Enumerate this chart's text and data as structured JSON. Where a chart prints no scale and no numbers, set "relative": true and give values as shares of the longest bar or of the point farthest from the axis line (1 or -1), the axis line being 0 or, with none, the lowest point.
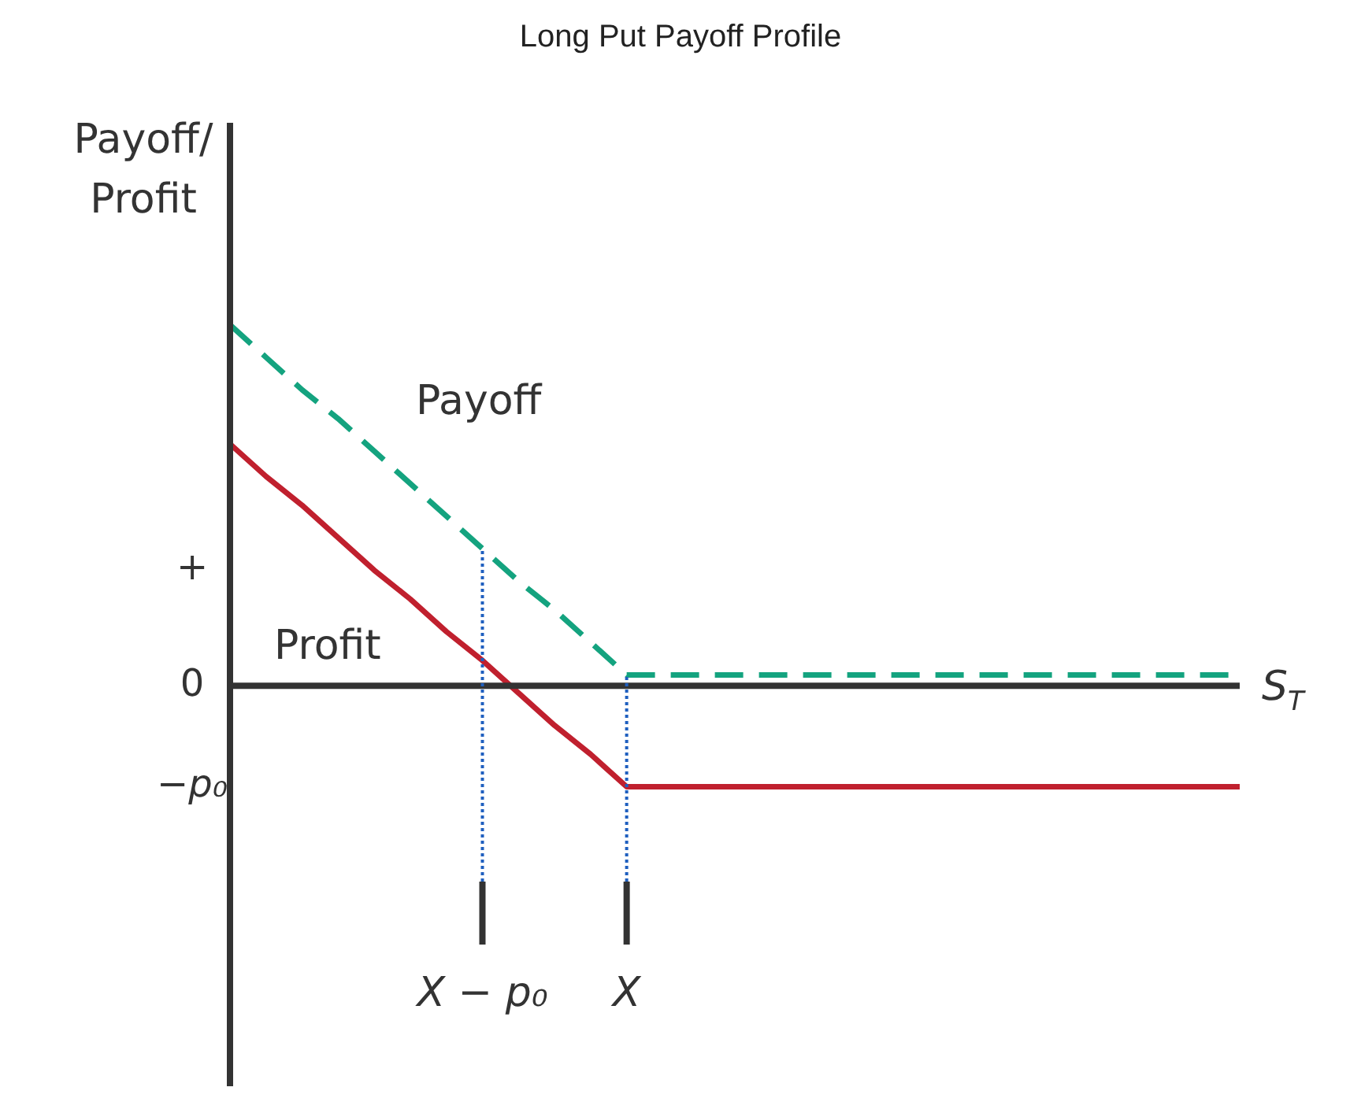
{
  "chart_data": {
    "type": "line",
    "title": "Long Put Payoff Profile",
    "ylabel": "Payoff/ Profit",
    "xlabel": "S$_{T}$",
    "relative": true,
    "categories": [
      null,
      null,
      null,
      null,
      null,
      null,
      null,
      "X − p₀",
      null,
      null,
      null,
      "X",
      null,
      null,
      null,
      null,
      null,
      null,
      null,
      null,
      null,
      null,
      null,
      null,
      null,
      null,
      null,
      null,
      null
    ],
    "series": [
      {
        "name": "Payoff",
        "color": "#14a37f",
        "line_style": "dashed",
        "values": [
          1,
          0.91,
          0.82,
          0.74,
          0.65,
          0.56,
          0.47,
          0.38,
          0.29,
          0.21,
          0.12,
          0.03,
          0.03,
          0.03,
          0.03,
          0.03,
          0.03,
          0.03,
          0.03,
          0.03,
          0.03,
          0.03,
          0.03,
          0.03,
          0.03,
          0.03,
          0.03,
          0.03,
          0.03
        ]
      },
      {
        "name": "Profit",
        "color": "#c0202e",
        "line_style": "solid",
        "values": [
          0.67,
          0.58,
          0.5,
          0.41,
          0.32,
          0.24,
          0.15,
          0.07,
          -0.02,
          -0.11,
          -0.19,
          -0.28,
          -0.28,
          -0.28,
          -0.28,
          -0.28,
          -0.28,
          -0.28,
          -0.28,
          -0.28,
          -0.28,
          -0.28,
          -0.28,
          -0.28,
          -0.28,
          -0.28,
          -0.28,
          -0.28,
          -0.28
        ]
      }
    ],
    "annotations": [
      "+",
      "0",
      "−p₀"
    ],
    "ref_lines": [
      {
        "axis": "x",
        "value": "X − p₀",
        "color": "#1f5fbf",
        "line_style": "dotted"
      },
      {
        "axis": "x",
        "value": "X",
        "color": "#1f5fbf",
        "line_style": "dotted"
      }
    ],
    "grid": false,
    "legend": false,
    "marker": "none"
  }
}
